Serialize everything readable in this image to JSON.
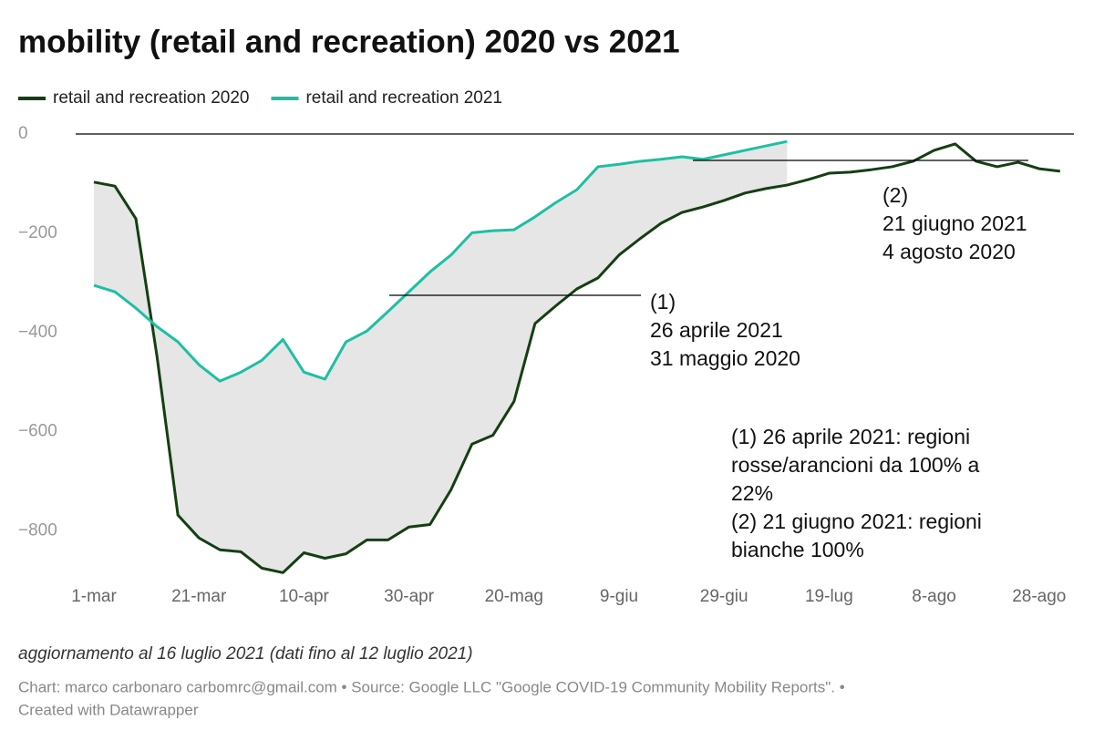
{
  "chart_data": {
    "type": "line",
    "title": "mobility (retail and recreation) 2020 vs 2021",
    "categories": [
      "1-mar",
      null,
      null,
      null,
      null,
      "21-mar",
      null,
      null,
      null,
      null,
      "10-apr",
      null,
      null,
      null,
      null,
      "30-apr",
      null,
      null,
      null,
      null,
      "20-mag",
      null,
      null,
      null,
      null,
      "9-giu",
      null,
      null,
      null,
      null,
      "29-giu",
      null,
      null,
      null,
      null,
      "19-lug",
      null,
      null,
      null,
      null,
      "8-ago",
      null,
      null,
      null,
      null,
      "28-ago",
      null
    ],
    "series": [
      {
        "name": "retail and recreation 2020",
        "color": "#143f12",
        "values": [
          -97,
          -105,
          -171,
          -447,
          -768,
          -814,
          -838,
          -842,
          -875,
          -884,
          -844,
          -855,
          -846,
          -818,
          -818,
          -792,
          -787,
          -717,
          -625,
          -607,
          -539,
          -382,
          -346,
          -312,
          -290,
          -244,
          -211,
          -180,
          -158,
          -147,
          -134,
          -119,
          -110,
          -103,
          -92,
          -79,
          -77,
          -72,
          -66,
          -55,
          -33,
          -20,
          -55,
          -66,
          -57,
          -70,
          -75
        ]
      },
      {
        "name": "retail and recreation 2021",
        "color": "#1fbfa3",
        "values": [
          -305,
          -318,
          -351,
          -388,
          -419,
          -465,
          -498,
          -480,
          -456,
          -414,
          -480,
          -494,
          -419,
          -397,
          -358,
          -318,
          -278,
          -244,
          -199,
          -195,
          -193,
          -167,
          -138,
          -112,
          -66,
          -61,
          -55,
          -51,
          -46,
          -51,
          -42,
          -33,
          -24,
          -15,
          null,
          null,
          null,
          null,
          null,
          null,
          null,
          null,
          null,
          null,
          null,
          null,
          null
        ]
      }
    ],
    "ylim": [
      -900,
      0
    ],
    "yticks": [
      0,
      {
        "value": -200,
        "label": "−200"
      },
      {
        "value": -400,
        "label": "−400"
      },
      {
        "value": -600,
        "label": "−600"
      },
      {
        "value": -800,
        "label": "−800"
      }
    ],
    "annotations": [
      {
        "lines": [
          "(1)",
          "26 aprile 2021",
          "31 maggio 2020"
        ]
      },
      {
        "lines": [
          "(2)",
          "21 giugno 2021",
          "4 agosto 2020"
        ]
      }
    ],
    "note_lines": [
      "(1) 26 aprile 2021: regioni",
      "rosse/arancioni da 100% a",
      "22%",
      "(2) 21 giugno 2021: regioni",
      "bianche 100%"
    ],
    "subnote": "aggiornamento al 16 luglio 2021 (dati fino al 12 luglio 2021)",
    "source_lines": [
      "Chart: marco carbonaro carbomrc@gmail.com • Source: Google LLC \"Google COVID-19 Community Mobility Reports\". •",
      "Created with Datawrapper"
    ]
  }
}
